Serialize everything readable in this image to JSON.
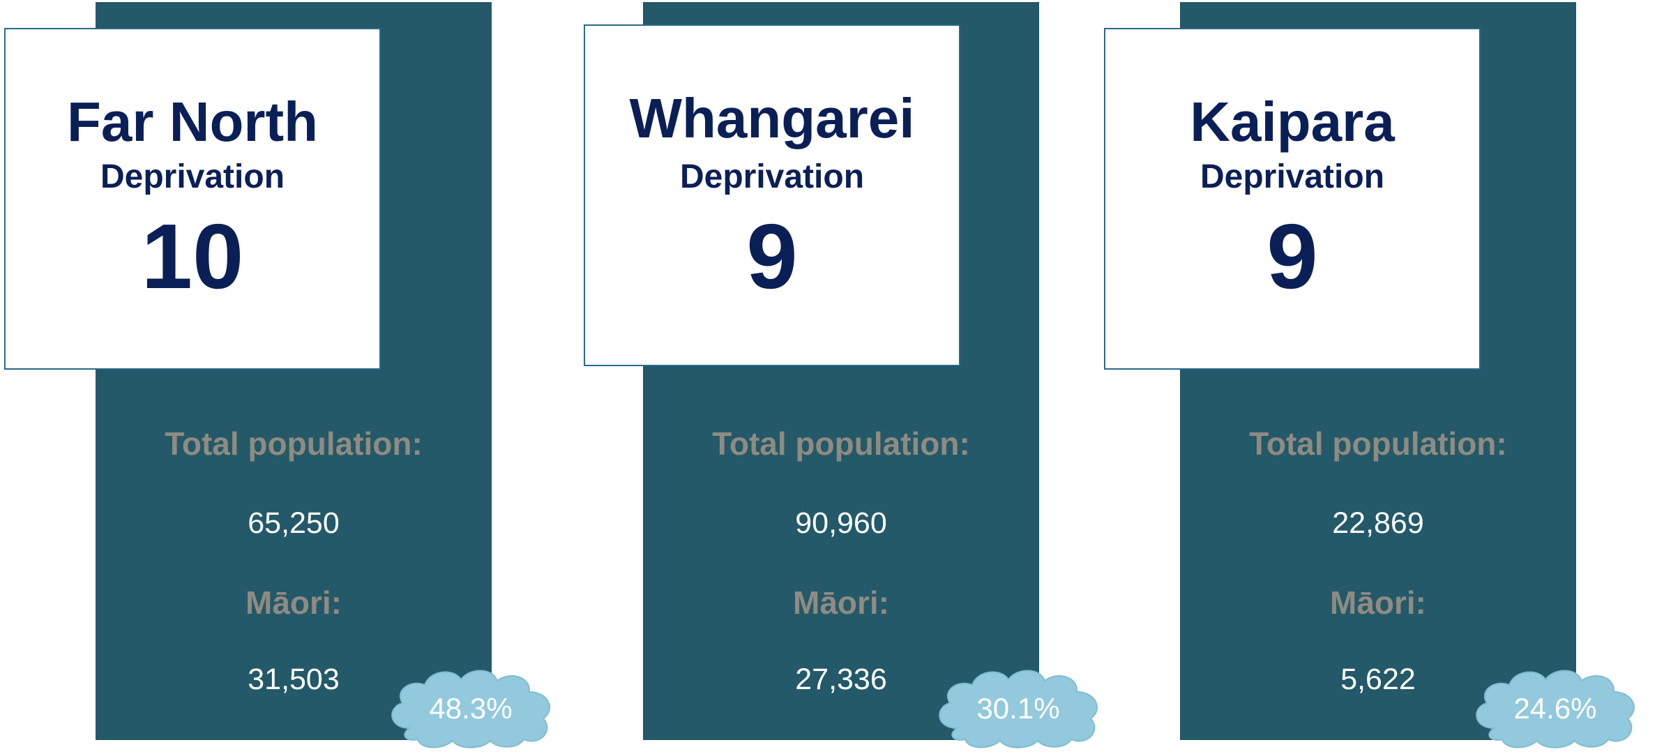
{
  "districts": [
    {
      "name": "Far North",
      "deprivation_label": "Deprivation",
      "deprivation": "10",
      "population_label": "Total population:",
      "population": "65,250",
      "maori_label": "Māori:",
      "maori": "31,503",
      "maori_share": "48.3%"
    },
    {
      "name": "Whangarei",
      "deprivation_label": "Deprivation",
      "deprivation": "9",
      "population_label": "Total population:",
      "population": "90,960",
      "maori_label": "Māori:",
      "maori": "27,336",
      "maori_share": "30.1%"
    },
    {
      "name": "Kaipara",
      "deprivation_label": "Deprivation",
      "deprivation": "9",
      "population_label": "Total population:",
      "population": "22,869",
      "maori_label": "Māori:",
      "maori": "5,622",
      "maori_share": "24.6%"
    }
  ]
}
